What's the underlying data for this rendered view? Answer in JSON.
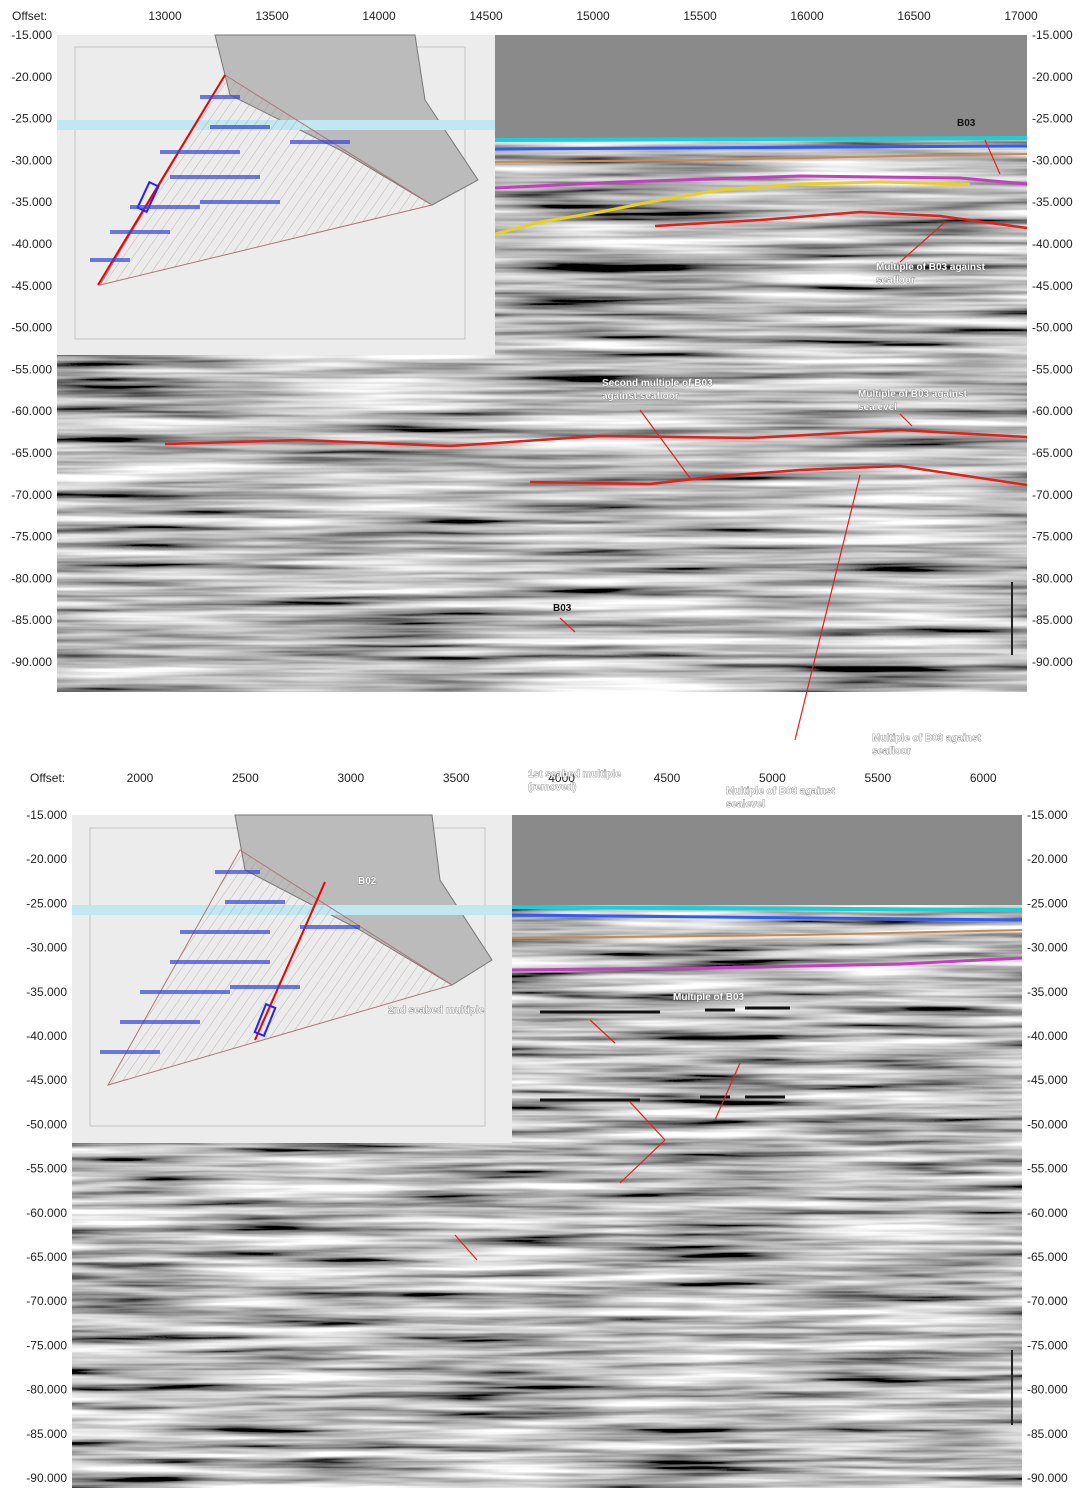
{
  "panels": [
    {
      "offset_label": "Offset:",
      "x_ticks": [
        "13000",
        "13500",
        "14000",
        "14500",
        "15000",
        "15500",
        "16000",
        "16500",
        "17000"
      ],
      "y_ticks": [
        "-15.000",
        "-20.000",
        "-25.000",
        "-30.000",
        "-35.000",
        "-40.000",
        "-45.000",
        "-50.000",
        "-55.000",
        "-60.000",
        "-65.000",
        "-70.000",
        "-75.000",
        "-80.000",
        "-85.000",
        "-90.000"
      ],
      "annotations": [
        {
          "lines": [
            "B03"
          ]
        },
        {
          "lines": [
            "Multiple of B03 against",
            "seafloor"
          ]
        },
        {
          "lines": [
            "Second multiple of B03",
            "against seafloor"
          ]
        },
        {
          "lines": [
            "Multiple of B03 against",
            "sealevel"
          ]
        }
      ]
    },
    {
      "offset_label": "Offset:",
      "x_ticks": [
        "2000",
        "2500",
        "3000",
        "3500",
        "4000",
        "4500",
        "5000",
        "5500",
        "6000"
      ],
      "y_ticks": [
        "-15.000",
        "-20.000",
        "-25.000",
        "-30.000",
        "-35.000",
        "-40.000",
        "-45.000",
        "-50.000",
        "-55.000",
        "-60.000",
        "-65.000",
        "-70.000",
        "-75.000",
        "-80.000",
        "-85.000",
        "-90.000"
      ],
      "annotations": [
        {
          "lines": [
            "B03"
          ]
        },
        {
          "lines": [
            "Multiple of B03 against",
            "seafloor"
          ]
        },
        {
          "lines": [
            "1st seabed multiple",
            "(removed)"
          ]
        },
        {
          "lines": [
            "Multiple of B03 against",
            "sealevel"
          ]
        },
        {
          "lines": [
            "Multiple of B03"
          ]
        },
        {
          "lines": [
            "2nd seabed multiple"
          ]
        },
        {
          "lines": [
            "B02"
          ]
        }
      ]
    }
  ]
}
